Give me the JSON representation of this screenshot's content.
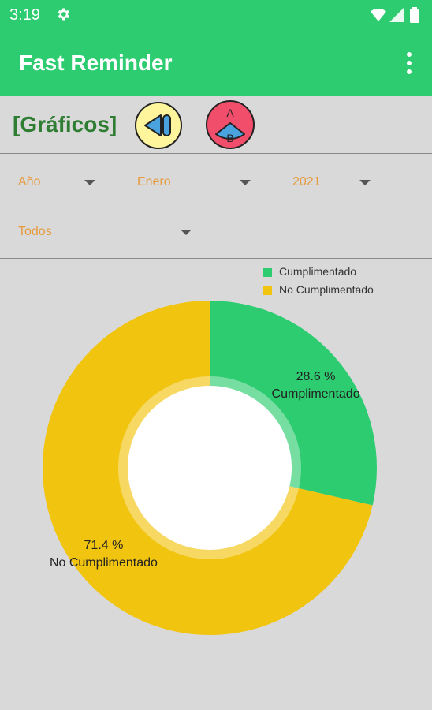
{
  "status_bar": {
    "time": "3:19"
  },
  "app_bar": {
    "title": "Fast Reminder"
  },
  "toolbar": {
    "section_title": "[Gráficos]",
    "ab_top": "A",
    "ab_bottom": "B"
  },
  "filters": {
    "period": "Año",
    "month": "Enero",
    "year": "2021",
    "category": "Todos"
  },
  "colors": {
    "accent": "#2ecc71",
    "completed": "#2ecc71",
    "not_completed": "#f1c40f",
    "filter_text": "#e69a3c"
  },
  "chart_data": {
    "type": "pie",
    "style": "donut",
    "categories": [
      "Cumplimentado",
      "No Cumplimentado"
    ],
    "values": [
      28.6,
      71.4
    ],
    "unit": "%",
    "labels": [
      {
        "value_text": "28.6 %",
        "name": "Cumplimentado"
      },
      {
        "value_text": "71.4 %",
        "name": "No Cumplimentado"
      }
    ],
    "legend_position": "top-right"
  }
}
